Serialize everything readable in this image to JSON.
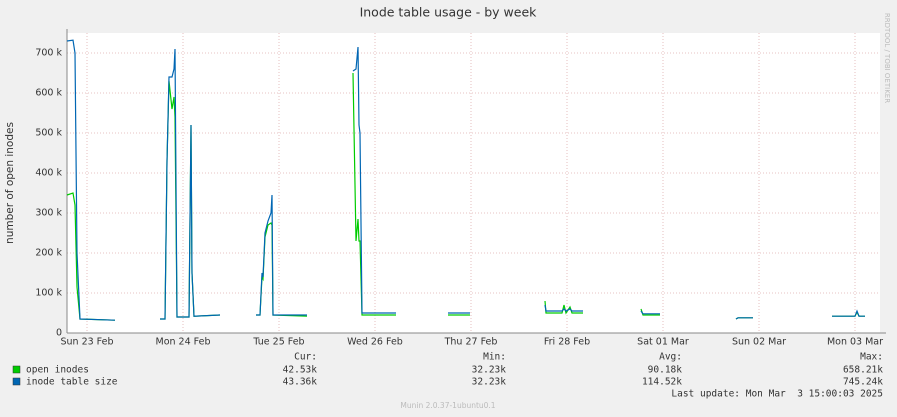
{
  "chart_data": {
    "type": "line",
    "title": "Inode table usage - by week",
    "y_label": "number of open inodes",
    "side_text": "RRDTOOL / TOBI OETIKER",
    "xlim": [
      "2025-02-22T19:00",
      "2025-03-03T06:15"
    ],
    "xticks": [
      {
        "value": "2025-02-23T00:00",
        "label": "Sun 23 Feb"
      },
      {
        "value": "2025-02-24T00:00",
        "label": "Mon 24 Feb"
      },
      {
        "value": "2025-02-25T00:00",
        "label": "Tue 25 Feb"
      },
      {
        "value": "2025-02-26T00:00",
        "label": "Wed 26 Feb"
      },
      {
        "value": "2025-02-27T00:00",
        "label": "Thu 27 Feb"
      },
      {
        "value": "2025-02-28T00:00",
        "label": "Fri 28 Feb"
      },
      {
        "value": "2025-03-01T00:00",
        "label": "Sat 01 Mar"
      },
      {
        "value": "2025-03-02T00:00",
        "label": "Sun 02 Mar"
      },
      {
        "value": "2025-03-03T00:00",
        "label": "Mon 03 Mar"
      }
    ],
    "ylim": [
      0,
      750000
    ],
    "yticks": [
      0,
      {
        "value": 100000,
        "label": "100 k"
      },
      {
        "value": 200000,
        "label": "200 k"
      },
      {
        "value": 300000,
        "label": "300 k"
      },
      {
        "value": 400000,
        "label": "400 k"
      },
      {
        "value": 500000,
        "label": "500 k"
      },
      {
        "value": 600000,
        "label": "600 k"
      },
      {
        "value": 700000,
        "label": "700 k"
      }
    ],
    "grid": true,
    "x": [
      "2025-02-22T19:00",
      "2025-02-22T20:30",
      "2025-02-22T21:00",
      "2025-02-22T21:30",
      "2025-02-22T22:15",
      "2025-02-23T07:00",
      null,
      "2025-02-23T18:15",
      "2025-02-23T19:30",
      "2025-02-23T20:00",
      "2025-02-23T20:30",
      "2025-02-23T21:15",
      "2025-02-23T21:45",
      "2025-02-23T22:00",
      "2025-02-23T22:30",
      "2025-02-24T01:30",
      "2025-02-24T02:00",
      "2025-02-24T02:15",
      "2025-02-24T02:45",
      "2025-02-24T09:15",
      null,
      "2025-02-24T18:15",
      "2025-02-24T19:15",
      "2025-02-24T19:45",
      "2025-02-24T20:00",
      "2025-02-24T20:30",
      "2025-02-24T21:15",
      "2025-02-24T22:00",
      "2025-02-24T22:15",
      "2025-02-24T22:30",
      "2025-02-25T07:00",
      null,
      "2025-02-25T18:30",
      "2025-02-25T19:15",
      "2025-02-25T19:45",
      "2025-02-25T20:00",
      "2025-02-25T20:15",
      "2025-02-25T20:45",
      "2025-02-26T05:15",
      null,
      "2025-02-26T18:15",
      "2025-02-26T23:45",
      null,
      "2025-02-27T18:30",
      "2025-02-27T18:45",
      "2025-02-27T22:45",
      "2025-02-27T23:15",
      "2025-02-27T23:45",
      "2025-02-28T00:45",
      "2025-02-28T01:15",
      "2025-02-28T04:00",
      null,
      "2025-02-28T18:30",
      "2025-02-28T19:00",
      "2025-02-28T23:15",
      null,
      "2025-03-01T18:15",
      "2025-03-01T18:45",
      "2025-03-01T22:30",
      null,
      "2025-03-02T18:15",
      "2025-03-03T00:00",
      "2025-03-03T00:30",
      "2025-03-03T01:00",
      "2025-03-03T02:30"
    ],
    "series": [
      {
        "name": "open inodes",
        "color": "#00cc00",
        "values": [
          345000,
          350000,
          320000,
          115000,
          35000,
          32000,
          null,
          35000,
          35000,
          430000,
          630000,
          560000,
          590000,
          540000,
          40000,
          40000,
          520000,
          150000,
          42000,
          45000,
          null,
          45000,
          45000,
          140000,
          135000,
          240000,
          270000,
          275000,
          270000,
          45000,
          42000,
          null,
          650000,
          230000,
          285000,
          230000,
          230000,
          45000,
          45000,
          null,
          45000,
          45000,
          null,
          80000,
          50000,
          50000,
          70000,
          50000,
          65000,
          50000,
          50000,
          null,
          60000,
          45000,
          45000,
          null,
          35000,
          38000,
          38000,
          null,
          42000,
          42000,
          52000,
          42000,
          42000
        ]
      },
      {
        "name": "inode table size",
        "color": "#0066b3",
        "values": [
          730000,
          732000,
          700000,
          200000,
          35000,
          32000,
          null,
          35000,
          35000,
          430000,
          640000,
          640000,
          660000,
          710000,
          40000,
          40000,
          520000,
          150000,
          42000,
          45000,
          null,
          45000,
          45000,
          150000,
          140000,
          250000,
          280000,
          300000,
          345000,
          45000,
          45000,
          null,
          655000,
          660000,
          715000,
          520000,
          500000,
          50000,
          50000,
          null,
          50000,
          50000,
          null,
          70000,
          55000,
          55000,
          60000,
          55000,
          60000,
          55000,
          55000,
          null,
          55000,
          48000,
          48000,
          null,
          35000,
          38000,
          38000,
          null,
          42000,
          42000,
          55000,
          42000,
          42000
        ]
      }
    ],
    "legend_table": {
      "headers": [
        "Cur:",
        "Min:",
        "Avg:",
        "Max:"
      ],
      "rows": [
        [
          "42.53k",
          "32.23k",
          "90.18k",
          "658.21k"
        ],
        [
          "43.36k",
          "32.23k",
          "114.52k",
          "745.24k"
        ]
      ]
    },
    "last_update": "Last update: Mon Mar  3 15:00:03 2025",
    "footer": "Munin 2.0.37-1ubuntu0.1"
  }
}
